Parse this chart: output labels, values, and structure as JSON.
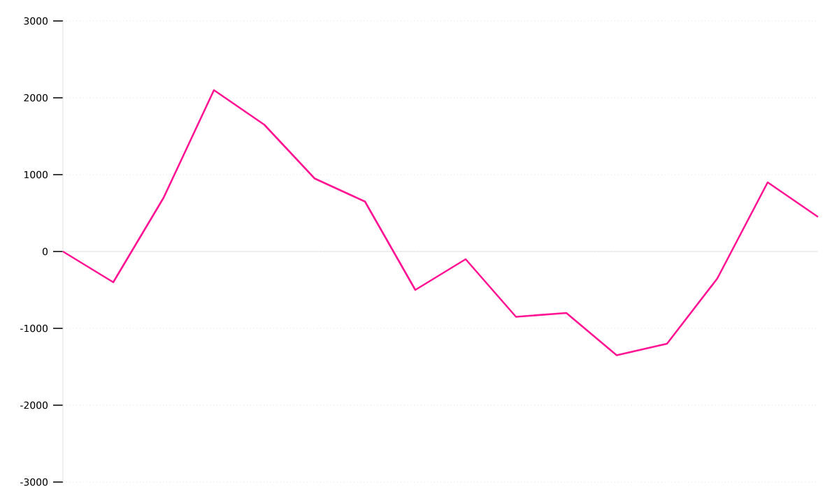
{
  "chart_data": {
    "type": "line",
    "categories": [
      null,
      null,
      null,
      null,
      null,
      null,
      null,
      null,
      null,
      null,
      null,
      null,
      null,
      null,
      null,
      null
    ],
    "series": [
      {
        "color": "#ff1493",
        "values": [
          0,
          -400,
          700,
          2100,
          1650,
          950,
          650,
          -500,
          -100,
          -850,
          -800,
          -1350,
          -1200,
          -350,
          900,
          450
        ]
      }
    ],
    "ylim": [
      -3000,
      3000
    ],
    "yticks": [
      -3000,
      -2000,
      -1000,
      0,
      1000,
      2000,
      3000
    ],
    "tick_labels": "y",
    "grid": "y",
    "marker": "none",
    "line_style": "solid"
  }
}
